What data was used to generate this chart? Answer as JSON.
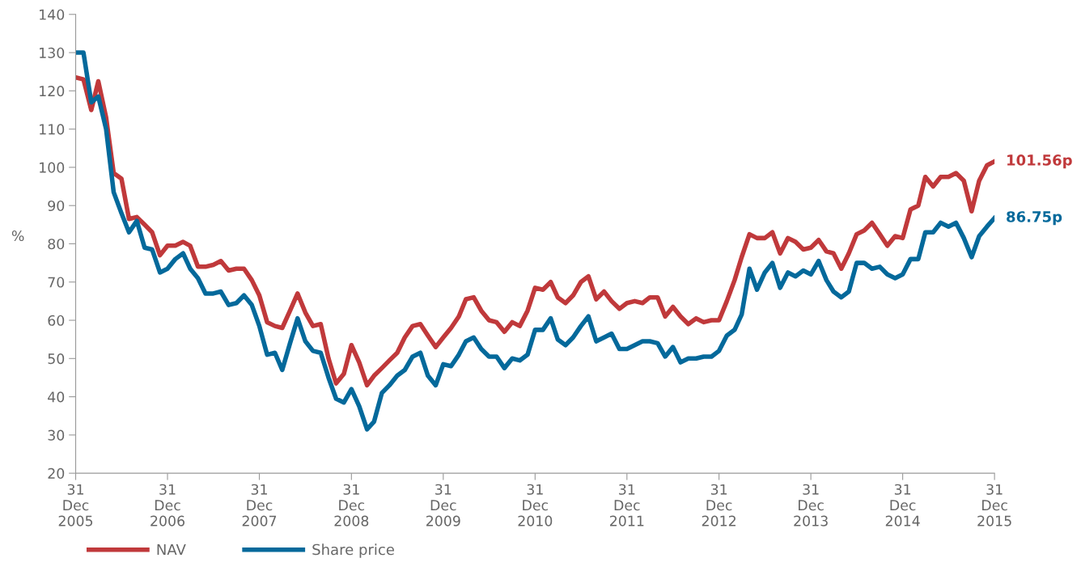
{
  "chart_data": {
    "type": "line",
    "ylabel": "%",
    "x": [
      "2005-12",
      "2006-01",
      "2006-02",
      "2006-03",
      "2006-04",
      "2006-05",
      "2006-06",
      "2006-07",
      "2006-08",
      "2006-09",
      "2006-10",
      "2006-11",
      "2006-12",
      "2007-01",
      "2007-02",
      "2007-03",
      "2007-04",
      "2007-05",
      "2007-06",
      "2007-07",
      "2007-08",
      "2007-09",
      "2007-10",
      "2007-11",
      "2007-12",
      "2008-01",
      "2008-02",
      "2008-03",
      "2008-04",
      "2008-05",
      "2008-06",
      "2008-07",
      "2008-08",
      "2008-09",
      "2008-10",
      "2008-11",
      "2008-12",
      "2009-01",
      "2009-02",
      "2009-03",
      "2009-04",
      "2009-05",
      "2009-06",
      "2009-07",
      "2009-08",
      "2009-09",
      "2009-10",
      "2009-11",
      "2009-12",
      "2010-01",
      "2010-02",
      "2010-03",
      "2010-04",
      "2010-05",
      "2010-06",
      "2010-07",
      "2010-08",
      "2010-09",
      "2010-10",
      "2010-11",
      "2010-12",
      "2011-01",
      "2011-02",
      "2011-03",
      "2011-04",
      "2011-05",
      "2011-06",
      "2011-07",
      "2011-08",
      "2011-09",
      "2011-10",
      "2011-11",
      "2011-12",
      "2012-01",
      "2012-02",
      "2012-03",
      "2012-04",
      "2012-05",
      "2012-06",
      "2012-07",
      "2012-08",
      "2012-09",
      "2012-10",
      "2012-11",
      "2012-12",
      "2013-01",
      "2013-02",
      "2013-03",
      "2013-04",
      "2013-05",
      "2013-06",
      "2013-07",
      "2013-08",
      "2013-09",
      "2013-10",
      "2013-11",
      "2013-12",
      "2014-01",
      "2014-02",
      "2014-03",
      "2014-04",
      "2014-05",
      "2014-06",
      "2014-07",
      "2014-08",
      "2014-09",
      "2014-10",
      "2014-11",
      "2014-12",
      "2015-01",
      "2015-02",
      "2015-03",
      "2015-04",
      "2015-05",
      "2015-06",
      "2015-07",
      "2015-08",
      "2015-09",
      "2015-10",
      "2015-11",
      "2015-12"
    ],
    "series": [
      {
        "name": "NAV",
        "color": "#c0393b",
        "values": [
          123.5,
          123,
          115,
          122.5,
          113,
          98.5,
          97,
          86.5,
          87,
          85,
          83,
          77,
          79.5,
          79.5,
          80.5,
          79.5,
          74,
          74,
          74.5,
          75.5,
          73,
          73.5,
          73.5,
          70.5,
          66.5,
          59.5,
          58.5,
          58,
          62.5,
          67,
          62,
          58.5,
          59,
          50,
          43.5,
          46,
          53.5,
          49,
          43,
          45.5,
          47.5,
          49.5,
          51.5,
          55.5,
          58.5,
          59,
          56,
          53,
          55.5,
          58,
          61,
          65.5,
          66,
          62.5,
          60,
          59.5,
          57,
          59.5,
          58.5,
          62.5,
          68.5,
          68,
          70,
          66,
          64.5,
          66.5,
          70,
          71.5,
          65.5,
          67.5,
          65,
          63,
          64.5,
          65,
          64.5,
          66,
          66,
          61,
          63.5,
          61,
          59,
          60.5,
          59.5,
          60,
          60,
          65,
          70.5,
          76.5,
          82.5,
          81.5,
          81.5,
          83,
          77.5,
          81.5,
          80.5,
          78.5,
          79,
          81,
          78,
          77.5,
          73.5,
          77.5,
          82.5,
          83.5,
          85.5,
          82.5,
          79.5,
          82,
          81.5,
          89,
          90,
          97.5,
          95,
          97.5,
          97.5,
          98.5,
          96.5,
          88.5,
          96.5,
          100.5,
          101.56
        ]
      },
      {
        "name": "Share price",
        "color": "#04699b",
        "values": [
          130,
          130,
          117,
          118.5,
          110,
          93.5,
          88,
          83,
          86,
          79,
          78.5,
          72.5,
          73.5,
          76,
          77.5,
          73.5,
          71,
          67,
          67,
          67.5,
          64,
          64.5,
          66.5,
          64,
          58.5,
          51,
          51.5,
          47,
          54,
          60.5,
          54.5,
          52,
          51.5,
          45,
          39.5,
          38.5,
          42,
          37.5,
          31.5,
          33.5,
          41,
          43,
          45.5,
          47,
          50.5,
          51.5,
          45.5,
          43,
          48.5,
          48,
          51,
          54.5,
          55.5,
          52.5,
          50.5,
          50.5,
          47.5,
          50,
          49.5,
          51,
          57.5,
          57.5,
          60.5,
          55,
          53.5,
          55.5,
          58.5,
          61,
          54.5,
          55.5,
          56.5,
          52.5,
          52.5,
          53.5,
          54.5,
          54.5,
          54,
          50.5,
          53,
          49,
          50,
          50,
          50.5,
          50.5,
          52,
          56,
          57.5,
          61.5,
          73.5,
          68,
          72.5,
          75,
          68.5,
          72.5,
          71.5,
          73,
          72,
          75.5,
          70.5,
          67.5,
          66,
          67.5,
          75,
          75,
          73.5,
          74,
          72,
          71,
          72,
          76,
          76,
          83,
          83,
          85.5,
          84.5,
          85.5,
          81.5,
          76.5,
          82,
          84.5,
          86.75
        ]
      }
    ],
    "xlim": [
      "2005-12",
      "2015-12"
    ],
    "xticks": [
      {
        "value": "2005-12",
        "label": "31\nDec\n2005"
      },
      {
        "value": "2006-12",
        "label": "31\nDec\n2006"
      },
      {
        "value": "2007-12",
        "label": "31\nDec\n2007"
      },
      {
        "value": "2008-12",
        "label": "31\nDec\n2008"
      },
      {
        "value": "2009-12",
        "label": "31\nDec\n2009"
      },
      {
        "value": "2010-12",
        "label": "31\nDec\n2010"
      },
      {
        "value": "2011-12",
        "label": "31\nDec\n2011"
      },
      {
        "value": "2012-12",
        "label": "31\nDec\n2012"
      },
      {
        "value": "2013-12",
        "label": "31\nDec\n2013"
      },
      {
        "value": "2014-12",
        "label": "31\nDec\n2014"
      },
      {
        "value": "2015-12",
        "label": "31\nDec\n2015"
      }
    ],
    "ylim": [
      20,
      140
    ],
    "yticks": [
      20,
      30,
      40,
      50,
      60,
      70,
      80,
      90,
      100,
      110,
      120,
      130,
      140
    ],
    "annotations": [
      {
        "text": "101.56p",
        "x": "2015-12",
        "y": 101.56
      },
      {
        "text": "86.75p",
        "x": "2015-12",
        "y": 86.75
      }
    ],
    "grid": false,
    "legend": "bottom left",
    "marker": "none",
    "line_style": "solid"
  }
}
